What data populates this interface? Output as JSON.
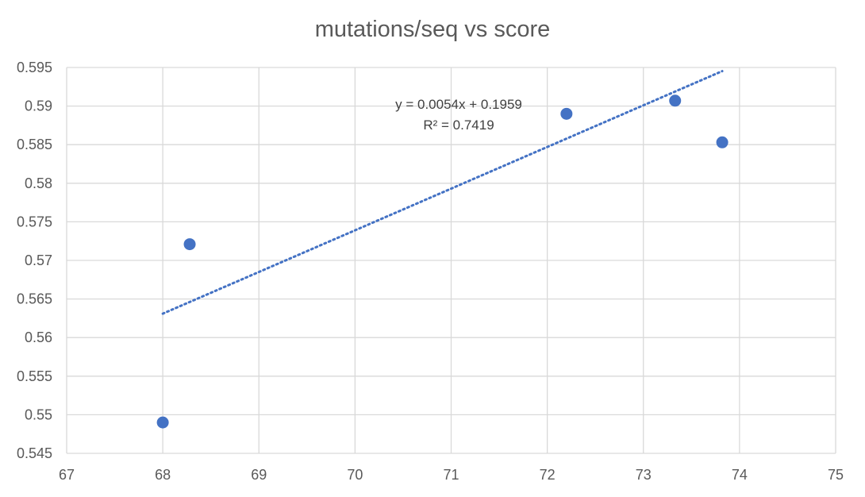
{
  "chart_data": {
    "type": "scatter",
    "title": "mutations/seq vs score",
    "xlabel": "",
    "ylabel": "",
    "xlim": [
      67,
      75
    ],
    "ylim": [
      0.545,
      0.595
    ],
    "x_ticks": [
      "67",
      "68",
      "69",
      "70",
      "71",
      "72",
      "73",
      "74",
      "75"
    ],
    "y_ticks": [
      "0.545",
      "0.55",
      "0.555",
      "0.56",
      "0.565",
      "0.57",
      "0.575",
      "0.58",
      "0.585",
      "0.59",
      "0.595"
    ],
    "grid": true,
    "legend": "none",
    "marker_color": "#4472C4",
    "series": [
      {
        "points": [
          {
            "x": 68.0,
            "y": 0.549
          },
          {
            "x": 68.28,
            "y": 0.5721
          },
          {
            "x": 72.2,
            "y": 0.589
          },
          {
            "x": 73.33,
            "y": 0.5907
          },
          {
            "x": 73.82,
            "y": 0.5853
          }
        ]
      }
    ],
    "trendline": {
      "type": "linear",
      "style": "dotted",
      "color": "#4472C4",
      "x_range": [
        68.0,
        73.82
      ],
      "slope": 0.0054,
      "intercept": 0.1959,
      "equation": "y = 0.0054x + 0.1959",
      "r_squared": "R² = 0.7419"
    }
  }
}
